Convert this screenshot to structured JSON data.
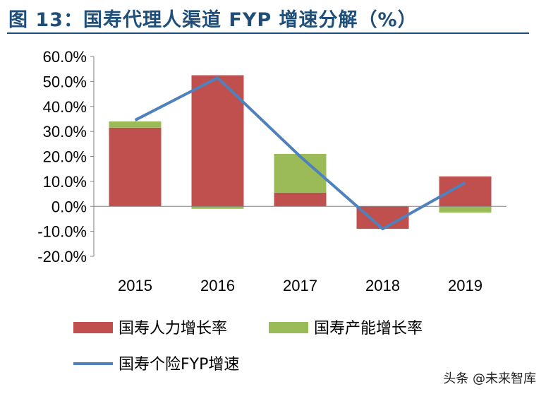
{
  "header": {
    "title": "图 13：国寿代理人渠道 FYP 增速分解（%）"
  },
  "watermark": "头条 @未来智库",
  "colors": {
    "title": "#1f4e79",
    "manpower": "#c0504d",
    "productivity": "#9bbb59",
    "fyp": "#4f81bd",
    "axis": "#808080"
  },
  "chart_data": {
    "type": "bar",
    "stacked": true,
    "categories": [
      "2015",
      "2016",
      "2017",
      "2018",
      "2019"
    ],
    "series": [
      {
        "name": "国寿人力增长率",
        "kind": "bar",
        "values": [
          31.5,
          52.5,
          5.5,
          -9.0,
          12.0
        ]
      },
      {
        "name": "国寿产能增长率",
        "kind": "bar",
        "values": [
          2.5,
          -1.0,
          15.5,
          0.0,
          -2.5
        ]
      },
      {
        "name": "国寿个险FYP增速",
        "kind": "line",
        "values": [
          34.5,
          51.5,
          20.0,
          -9.0,
          9.5
        ]
      }
    ],
    "ylim": [
      -20,
      60
    ],
    "yticks": [
      "60.0%",
      "50.0%",
      "40.0%",
      "30.0%",
      "20.0%",
      "10.0%",
      "0.0%",
      "-10.0%",
      "-20.0%"
    ],
    "ytick_values": [
      60,
      50,
      40,
      30,
      20,
      10,
      0,
      -10,
      -20
    ],
    "grid": false,
    "legend_position": "bottom"
  }
}
